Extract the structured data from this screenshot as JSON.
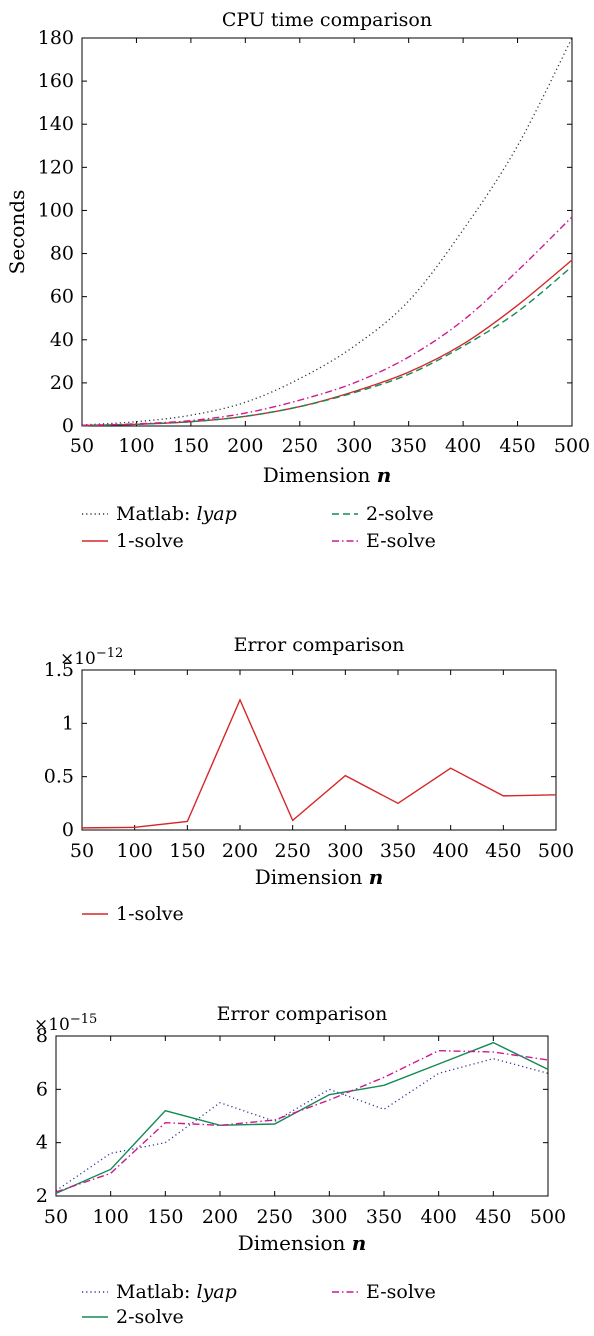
{
  "chart_data": [
    {
      "type": "line",
      "title": "CPU time comparison",
      "xlabel_prefix": "Dimension ",
      "xlabel_var": "n",
      "ylabel": "Seconds",
      "xlim": [
        50,
        500
      ],
      "ylim": [
        0,
        180
      ],
      "x_ticks": [
        50,
        100,
        150,
        200,
        250,
        300,
        350,
        400,
        450,
        500
      ],
      "y_ticks": [
        0,
        20,
        40,
        60,
        80,
        100,
        120,
        140,
        160,
        180
      ],
      "exponent_label": "",
      "grid": false,
      "legend_placement": "below",
      "x": [
        50,
        100,
        150,
        200,
        250,
        300,
        350,
        400,
        450,
        500
      ],
      "series": [
        {
          "name": "Matlab: ",
          "name_italic": "lyap",
          "color": "#333333",
          "dash": "dotted",
          "legend_col": 0,
          "legend_row": 0,
          "values": [
            0.5,
            2,
            5,
            11,
            22,
            37,
            58,
            91,
            130,
            180
          ]
        },
        {
          "name": "1-solve",
          "name_italic": "",
          "color": "#d62728",
          "dash": "solid",
          "legend_col": 0,
          "legend_row": 1,
          "values": [
            0.2,
            0.8,
            2,
            4.5,
            9,
            16,
            25,
            38,
            56,
            77
          ]
        },
        {
          "name": "2-solve",
          "name_italic": "",
          "color": "#138a55",
          "dash": "dashed",
          "legend_col": 1,
          "legend_row": 0,
          "values": [
            0.2,
            0.8,
            2,
            4.5,
            9,
            15.5,
            24,
            37,
            53,
            74
          ]
        },
        {
          "name": "E-solve",
          "name_italic": "",
          "color": "#cc1a8f",
          "dash": "dashdot",
          "legend_col": 1,
          "legend_row": 1,
          "values": [
            0.3,
            1,
            2.5,
            6,
            12,
            20,
            32,
            49,
            72,
            97
          ]
        }
      ]
    },
    {
      "type": "line",
      "title": "Error comparison",
      "xlabel_prefix": "Dimension ",
      "xlabel_var": "n",
      "ylabel": "",
      "xlim": [
        50,
        500
      ],
      "ylim": [
        0,
        1.5
      ],
      "x_ticks": [
        50,
        100,
        150,
        200,
        250,
        300,
        350,
        400,
        450,
        500
      ],
      "y_ticks": [
        0,
        0.5,
        1,
        1.5
      ],
      "exponent_label": "×10",
      "exponent_value": "−12",
      "grid": false,
      "legend_placement": "below",
      "x": [
        50,
        100,
        150,
        200,
        250,
        300,
        350,
        400,
        450,
        500
      ],
      "series": [
        {
          "name": "1-solve",
          "name_italic": "",
          "color": "#d62728",
          "dash": "solid",
          "legend_col": 0,
          "legend_row": 0,
          "values": [
            0.02,
            0.025,
            0.08,
            1.22,
            0.09,
            0.51,
            0.25,
            0.58,
            0.32,
            0.33
          ]
        }
      ]
    },
    {
      "type": "line",
      "title": "Error comparison",
      "xlabel_prefix": "Dimension ",
      "xlabel_var": "n",
      "ylabel": "",
      "xlim": [
        50,
        500
      ],
      "ylim": [
        2,
        8
      ],
      "x_ticks": [
        50,
        100,
        150,
        200,
        250,
        300,
        350,
        400,
        450,
        500
      ],
      "y_ticks": [
        2,
        4,
        6,
        8
      ],
      "exponent_label": "×10",
      "exponent_value": "−15",
      "grid": false,
      "legend_placement": "below",
      "x": [
        50,
        100,
        150,
        200,
        250,
        300,
        350,
        400,
        450,
        500
      ],
      "series": [
        {
          "name": "Matlab: ",
          "name_italic": "lyap",
          "color": "#333399",
          "dash": "dotted",
          "legend_col": 0,
          "legend_row": 0,
          "values": [
            2.2,
            3.6,
            4.0,
            5.5,
            4.8,
            6.0,
            5.25,
            6.6,
            7.15,
            6.6
          ]
        },
        {
          "name": "2-solve",
          "name_italic": "",
          "color": "#138a55",
          "dash": "solid",
          "legend_col": 0,
          "legend_row": 1,
          "values": [
            2.1,
            3.0,
            5.2,
            4.65,
            4.7,
            5.8,
            6.15,
            6.95,
            7.75,
            6.75
          ]
        },
        {
          "name": "E-solve",
          "name_italic": "",
          "color": "#cc1a8f",
          "dash": "dashdot",
          "legend_col": 1,
          "legend_row": 0,
          "values": [
            2.15,
            2.85,
            4.75,
            4.65,
            4.85,
            5.6,
            6.45,
            7.45,
            7.4,
            7.1
          ]
        }
      ]
    }
  ]
}
